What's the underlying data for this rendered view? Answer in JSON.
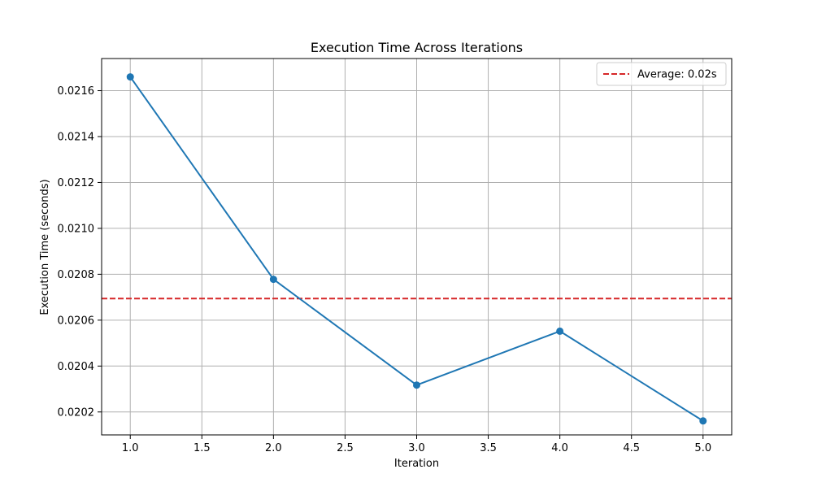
{
  "chart_data": {
    "type": "line",
    "title": "Execution Time Across Iterations",
    "xlabel": "Iteration",
    "ylabel": "Execution Time (seconds)",
    "x": [
      1,
      2,
      3,
      4,
      5
    ],
    "series": [
      {
        "values": [
          0.02166,
          0.020778,
          0.020317,
          0.020552,
          0.020161
        ],
        "color": "#1f77b4",
        "marker": "circle"
      }
    ],
    "reference_line": {
      "label": "Average: 0.02s",
      "value": 0.020694,
      "color": "#d62728",
      "style": "dashed"
    },
    "xlim": [
      0.8,
      5.2
    ],
    "ylim": [
      0.0201,
      0.02174
    ],
    "x_ticks": [
      1.0,
      1.5,
      2.0,
      2.5,
      3.0,
      3.5,
      4.0,
      4.5,
      5.0
    ],
    "x_tick_labels": [
      "1.0",
      "1.5",
      "2.0",
      "2.5",
      "3.0",
      "3.5",
      "4.0",
      "4.5",
      "5.0"
    ],
    "y_ticks": [
      0.0202,
      0.0204,
      0.0206,
      0.0208,
      0.021,
      0.0212,
      0.0214,
      0.0216
    ],
    "y_tick_labels": [
      "0.0202",
      "0.0204",
      "0.0206",
      "0.0208",
      "0.0210",
      "0.0212",
      "0.0214",
      "0.0216"
    ],
    "grid": true,
    "legend_position": "top-right"
  }
}
